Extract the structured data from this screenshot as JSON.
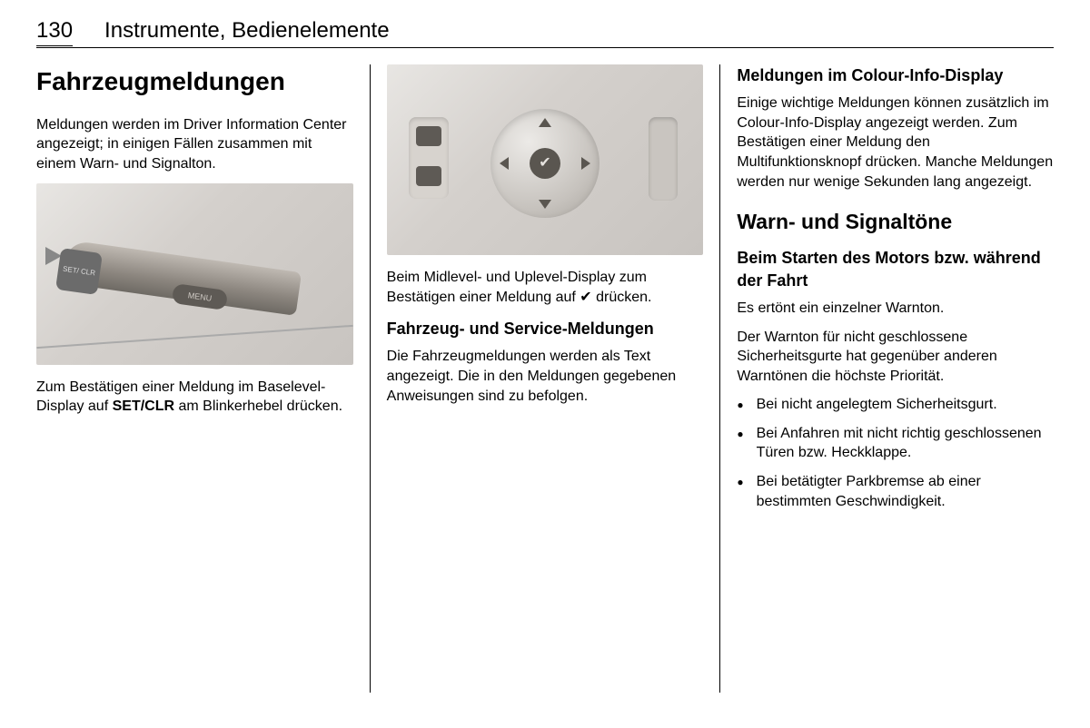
{
  "page_number": "130",
  "header_title": "Instrumente, Bedienelemente",
  "col1": {
    "heading": "Fahrzeugmeldungen",
    "intro": "Meldungen werden im Driver Information Center angezeigt; in einigen Fällen zusammen mit einem Warn- und Signalton.",
    "lever_label_set": "SET/\nCLR",
    "lever_label_menu": "MENU",
    "caption_pre": "Zum Bestätigen einer Meldung im Baselevel-Display auf ",
    "caption_bold": "SET/CLR",
    "caption_post": " am Blinkerhebel drücken."
  },
  "col2": {
    "wheel_check": "✔",
    "caption": "Beim Midlevel- und Uplevel-Display zum Bestätigen einer Meldung auf ✔ drücken.",
    "sub_heading": "Fahrzeug- und Service-Meldungen",
    "body": "Die Fahrzeugmeldungen werden als Text angezeigt. Die in den Meldungen gegebenen Anweisungen sind zu befolgen."
  },
  "col3": {
    "heading1": "Meldungen im Colour-Info-Display",
    "body1": "Einige wichtige Meldungen können zusätzlich im Colour-Info-Display angezeigt werden. Zum Bestätigen einer Meldung den Multifunktionsknopf drücken. Manche Meldungen werden nur wenige Sekunden lang angezeigt.",
    "heading2": "Warn- und Signaltöne",
    "heading3": "Beim Starten des Motors bzw. während der Fahrt",
    "line1": "Es ertönt ein einzelner Warnton.",
    "line2": "Der Warnton für nicht geschlossene Sicherheitsgurte hat gegenüber anderen Warntönen die höchste Priorität.",
    "bullets": [
      "Bei nicht angelegtem Sicherheitsgurt.",
      "Bei Anfahren mit nicht richtig geschlossenen Türen bzw. Heckklappe.",
      "Bei betätigter Parkbremse ab einer bestimmten Geschwindigkeit."
    ]
  },
  "colors": {
    "text": "#000000",
    "rule": "#000000",
    "image_bg": "#d8d4cf"
  }
}
